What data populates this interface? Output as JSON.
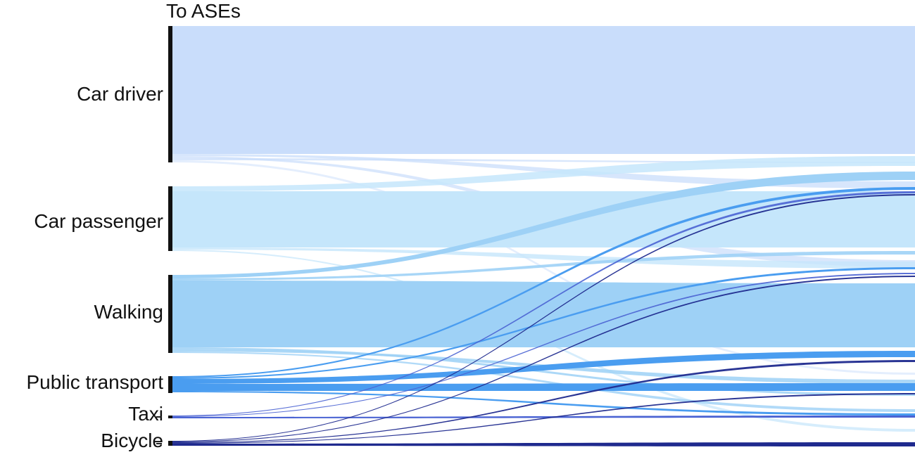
{
  "header": {
    "column_title": "To ASEs"
  },
  "categories": [
    {
      "id": "car_driver",
      "label": "Car driver",
      "color": "#c9ddfb"
    },
    {
      "id": "car_passenger",
      "label": "Car passenger",
      "color": "#c5e6fb"
    },
    {
      "id": "walking",
      "label": "Walking",
      "color": "#9ed1f6"
    },
    {
      "id": "public_transport",
      "label": "Public transport",
      "color": "#4a9df0"
    },
    {
      "id": "taxi",
      "label": "Taxi",
      "color": "#4a63d3"
    },
    {
      "id": "bicycle",
      "label": "Bicycle",
      "color": "#1f2a8e"
    }
  ]
}
